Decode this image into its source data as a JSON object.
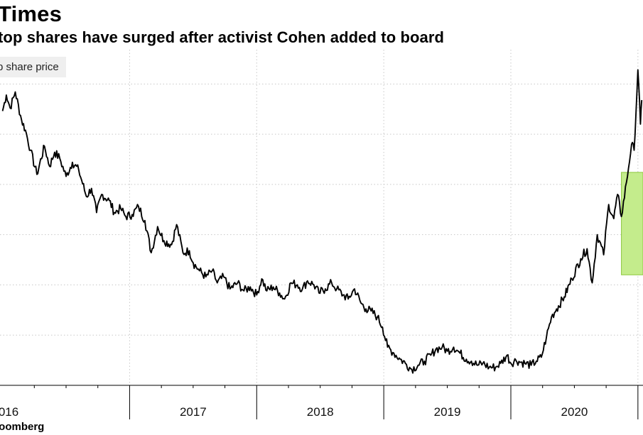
{
  "header": {
    "title": "Times",
    "subtitle": "top shares have surged after activist Cohen added to board",
    "legend_label": "p share price"
  },
  "footer": {
    "source": "loomberg"
  },
  "chart_data": {
    "type": "line",
    "title": "Times",
    "subtitle": "top shares have surged after activist Cohen added to board",
    "xlabel": "",
    "ylabel": "",
    "x_ticks": [
      "016",
      "2017",
      "2018",
      "2019",
      "2020"
    ],
    "xlim": [
      2015.98,
      2021.04
    ],
    "ylim": [
      0,
      32
    ],
    "grid": "dotted",
    "legend": "top-left",
    "series": [
      {
        "name": "p share price",
        "color": "#000000",
        "x": [
          2016.0,
          2016.03,
          2016.06,
          2016.1,
          2016.15,
          2016.18,
          2016.22,
          2016.27,
          2016.33,
          2016.37,
          2016.41,
          2016.45,
          2016.5,
          2016.55,
          2016.6,
          2016.66,
          2016.7,
          2016.74,
          2016.78,
          2016.84,
          2016.88,
          2016.93,
          2016.97,
          2017.02,
          2017.07,
          2017.12,
          2017.17,
          2017.22,
          2017.27,
          2017.33,
          2017.37,
          2017.42,
          2017.47,
          2017.5,
          2017.55,
          2017.6,
          2017.65,
          2017.69,
          2017.74,
          2017.79,
          2017.85,
          2017.9,
          2017.95,
          2018.0,
          2018.04,
          2018.08,
          2018.13,
          2018.18,
          2018.22,
          2018.27,
          2018.32,
          2018.36,
          2018.4,
          2018.45,
          2018.49,
          2018.54,
          2018.59,
          2018.63,
          2018.68,
          2018.72,
          2018.77,
          2018.82,
          2018.86,
          2018.9,
          2018.95,
          2018.99,
          2019.03,
          2019.08,
          2019.13,
          2019.17,
          2019.22,
          2019.27,
          2019.32,
          2019.37,
          2019.41,
          2019.46,
          2019.5,
          2019.55,
          2019.6,
          2019.65,
          2019.69,
          2019.74,
          2019.78,
          2019.83,
          2019.88,
          2019.92,
          2019.97,
          2020.0,
          2020.04,
          2020.08,
          2020.11,
          2020.16,
          2020.2,
          2020.24,
          2020.28,
          2020.32,
          2020.36,
          2020.42,
          2020.48,
          2020.55,
          2020.6,
          2020.64,
          2020.68,
          2020.73,
          2020.77,
          2020.81,
          2020.84,
          2020.87,
          2020.91,
          2020.95,
          2020.97,
          2021.0,
          2021.02,
          2021.03
        ],
        "values": [
          27.3,
          28.9,
          27.6,
          29.2,
          26.4,
          25.4,
          23.4,
          21.0,
          23.8,
          21.8,
          23.2,
          22.6,
          20.8,
          22.2,
          21.4,
          18.8,
          19.6,
          17.2,
          19.0,
          18.4,
          17.2,
          17.6,
          16.8,
          17.0,
          17.8,
          16.4,
          13.2,
          15.8,
          14.4,
          14.0,
          16.0,
          13.2,
          13.4,
          12.2,
          11.4,
          10.8,
          11.4,
          10.2,
          10.8,
          9.6,
          10.2,
          9.4,
          9.8,
          9.0,
          10.6,
          9.4,
          9.8,
          9.2,
          8.6,
          10.2,
          10.0,
          9.6,
          10.4,
          10.0,
          9.2,
          9.6,
          10.2,
          9.6,
          9.0,
          8.6,
          9.6,
          8.2,
          7.6,
          7.4,
          6.8,
          5.8,
          3.8,
          3.2,
          2.6,
          2.2,
          1.6,
          2.0,
          2.4,
          3.0,
          3.6,
          3.8,
          3.4,
          3.8,
          3.2,
          2.6,
          2.4,
          2.0,
          2.2,
          1.8,
          1.8,
          2.2,
          3.0,
          2.2,
          2.5,
          2.3,
          2.2,
          2.0,
          2.4,
          2.8,
          4.8,
          6.8,
          7.6,
          8.8,
          10.6,
          12.6,
          13.6,
          10.2,
          15.0,
          13.0,
          18.0,
          16.6,
          19.0,
          16.8,
          20.2,
          24.0,
          23.4,
          31.4,
          26.0,
          28.4
        ]
      }
    ],
    "highlight": {
      "x0": 2020.87,
      "x1": 2021.04,
      "y0": 11.0,
      "y1": 21.2,
      "color": "#c4ec8c",
      "border": "#8cc83c"
    }
  }
}
